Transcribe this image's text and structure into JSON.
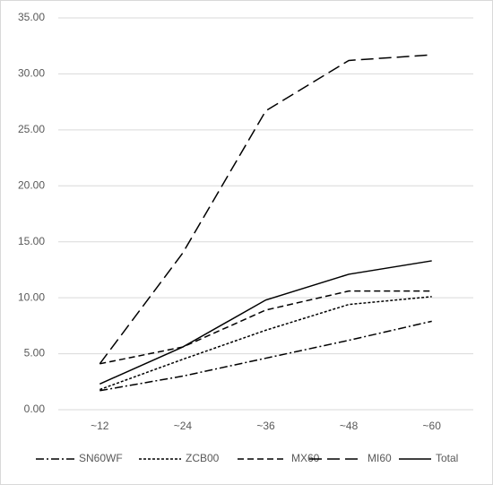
{
  "chart_data": {
    "type": "line",
    "categories": [
      "~12",
      "~24",
      "~36",
      "~48",
      "~60"
    ],
    "series": [
      {
        "name": "SN60WF",
        "color": "#000000",
        "values": [
          1.7,
          3.0,
          4.6,
          6.2,
          7.9
        ]
      },
      {
        "name": "ZCB00",
        "color": "#000000",
        "values": [
          1.8,
          4.5,
          7.1,
          9.4,
          10.1
        ]
      },
      {
        "name": "MX60",
        "color": "#000000",
        "values": [
          4.1,
          5.6,
          8.9,
          10.6,
          10.6
        ]
      },
      {
        "name": "MI60",
        "color": "#000000",
        "values": [
          4.1,
          14.0,
          26.7,
          31.2,
          31.7
        ]
      },
      {
        "name": "Total",
        "color": "#000000",
        "values": [
          2.3,
          5.6,
          9.8,
          12.1,
          13.3
        ]
      }
    ],
    "ylim": [
      0,
      35
    ],
    "yticks": [
      {
        "value": 0,
        "label": "0.00"
      },
      {
        "value": 5,
        "label": "5.00"
      },
      {
        "value": 10,
        "label": "10.00"
      },
      {
        "value": 15,
        "label": "15.00"
      },
      {
        "value": 20,
        "label": "20.00"
      },
      {
        "value": 25,
        "label": "25.00"
      },
      {
        "value": 30,
        "label": "30.00"
      },
      {
        "value": 35,
        "label": "35.00"
      }
    ],
    "grid": true,
    "legend": "bottom"
  }
}
